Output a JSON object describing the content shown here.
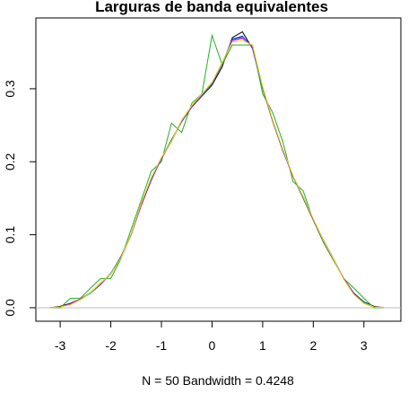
{
  "chart_data": {
    "type": "line",
    "title": "Larguras de banda equivalentes",
    "x_label": "N = 50   Bandwidth = 0.4248",
    "x": [
      -3.2,
      -3.0,
      -2.8,
      -2.6,
      -2.4,
      -2.2,
      -2.0,
      -1.8,
      -1.6,
      -1.4,
      -1.2,
      -1.0,
      -0.8,
      -0.6,
      -0.4,
      -0.2,
      0.0,
      0.2,
      0.4,
      0.6,
      0.8,
      1.0,
      1.2,
      1.4,
      1.6,
      1.8,
      2.0,
      2.2,
      2.4,
      2.6,
      2.8,
      3.0,
      3.2,
      3.4
    ],
    "series": [
      {
        "color": "#000000",
        "values": [
          0,
          0.002,
          0.006,
          0.012,
          0.02,
          0.032,
          0.047,
          0.07,
          0.1,
          0.14,
          0.175,
          0.205,
          0.23,
          0.255,
          0.275,
          0.29,
          0.305,
          0.33,
          0.37,
          0.378,
          0.355,
          0.3,
          0.255,
          0.215,
          0.18,
          0.15,
          0.12,
          0.09,
          0.065,
          0.04,
          0.02,
          0.008,
          0.002,
          0
        ]
      },
      {
        "color": "#ff0000",
        "values": [
          0,
          0.001,
          0.005,
          0.012,
          0.021,
          0.033,
          0.046,
          0.068,
          0.1,
          0.142,
          0.178,
          0.205,
          0.228,
          0.256,
          0.276,
          0.292,
          0.308,
          0.335,
          0.366,
          0.37,
          0.358,
          0.302,
          0.256,
          0.216,
          0.18,
          0.152,
          0.121,
          0.092,
          0.066,
          0.04,
          0.019,
          0.006,
          0.001,
          0
        ]
      },
      {
        "color": "#22b022",
        "values": [
          0,
          0,
          0.013,
          0.013,
          0.027,
          0.04,
          0.04,
          0.067,
          0.107,
          0.147,
          0.187,
          0.2,
          0.253,
          0.24,
          0.28,
          0.293,
          0.373,
          0.333,
          0.36,
          0.36,
          0.36,
          0.293,
          0.267,
          0.227,
          0.173,
          0.16,
          0.12,
          0.093,
          0.067,
          0.04,
          0.027,
          0.013,
          0,
          0
        ]
      },
      {
        "color": "#0000ff",
        "values": [
          0,
          0.001,
          0.005,
          0.012,
          0.02,
          0.033,
          0.047,
          0.069,
          0.1,
          0.141,
          0.176,
          0.204,
          0.229,
          0.255,
          0.276,
          0.291,
          0.307,
          0.334,
          0.368,
          0.372,
          0.357,
          0.301,
          0.256,
          0.215,
          0.18,
          0.151,
          0.121,
          0.091,
          0.066,
          0.04,
          0.02,
          0.007,
          0.001,
          0
        ]
      },
      {
        "color": "#00cdcd",
        "values": [
          0,
          0.001,
          0.005,
          0.011,
          0.02,
          0.033,
          0.047,
          0.069,
          0.101,
          0.142,
          0.177,
          0.205,
          0.229,
          0.256,
          0.276,
          0.291,
          0.307,
          0.334,
          0.367,
          0.371,
          0.357,
          0.301,
          0.256,
          0.216,
          0.18,
          0.151,
          0.121,
          0.091,
          0.066,
          0.04,
          0.019,
          0.007,
          0.001,
          0
        ]
      },
      {
        "color": "#ff00ff",
        "values": [
          0,
          0.001,
          0.005,
          0.012,
          0.021,
          0.033,
          0.046,
          0.068,
          0.1,
          0.141,
          0.177,
          0.205,
          0.228,
          0.256,
          0.276,
          0.292,
          0.308,
          0.335,
          0.366,
          0.369,
          0.358,
          0.302,
          0.256,
          0.216,
          0.18,
          0.152,
          0.121,
          0.092,
          0.066,
          0.04,
          0.019,
          0.006,
          0.001,
          0
        ]
      },
      {
        "color": "#e0e000",
        "values": [
          0,
          0.001,
          0.004,
          0.011,
          0.021,
          0.034,
          0.046,
          0.068,
          0.101,
          0.143,
          0.178,
          0.206,
          0.228,
          0.257,
          0.277,
          0.293,
          0.309,
          0.336,
          0.364,
          0.366,
          0.36,
          0.303,
          0.257,
          0.217,
          0.181,
          0.152,
          0.122,
          0.092,
          0.066,
          0.039,
          0.018,
          0.006,
          0.001,
          0
        ]
      }
    ],
    "xlim": [
      -3.48,
      3.73
    ],
    "ylim": [
      -0.0185,
      0.397
    ],
    "xticks": [
      -3,
      -2,
      -1,
      0,
      1,
      2,
      3
    ],
    "yticks": [
      {
        "value": 0,
        "label": "0.0"
      },
      0.1,
      0.2,
      0.3
    ]
  }
}
